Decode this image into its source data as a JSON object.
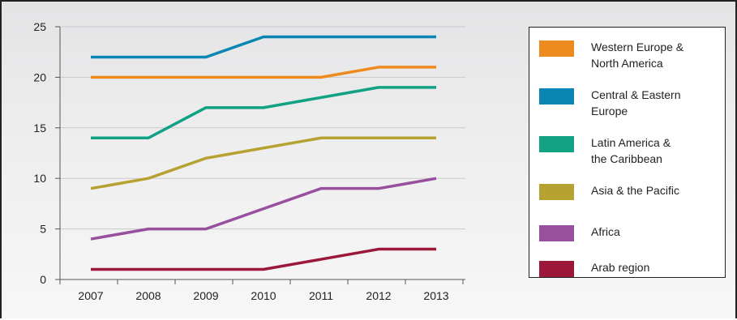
{
  "chart_data": {
    "type": "line",
    "categories": [
      "2007",
      "2008",
      "2009",
      "2010",
      "2011",
      "2012",
      "2013"
    ],
    "y_ticks": [
      "0",
      "5",
      "10",
      "15",
      "20",
      "25"
    ],
    "ylim": [
      0,
      25
    ],
    "grid": true,
    "legend_position": "right",
    "series": [
      {
        "name": "Western Europe &\nNorth America",
        "color": "#ED8B1F",
        "values": [
          20,
          20,
          20,
          20,
          20,
          21,
          21
        ]
      },
      {
        "name": "Central & Eastern\nEurope",
        "color": "#0A86B5",
        "values": [
          22,
          22,
          22,
          24,
          24,
          24,
          24
        ]
      },
      {
        "name": "Latin America &\nthe Caribbean",
        "color": "#10A283",
        "values": [
          14,
          14,
          17,
          17,
          18,
          19,
          19
        ]
      },
      {
        "name": "Asia & the Pacific",
        "color": "#B5A230",
        "values": [
          9,
          10,
          12,
          13,
          14,
          14,
          14
        ]
      },
      {
        "name": "Africa",
        "color": "#974F9E",
        "values": [
          4,
          5,
          5,
          7,
          9,
          9,
          10
        ]
      },
      {
        "name": "Arab region",
        "color": "#9B1838",
        "values": [
          1,
          1,
          1,
          1,
          2,
          3,
          3
        ]
      }
    ]
  }
}
